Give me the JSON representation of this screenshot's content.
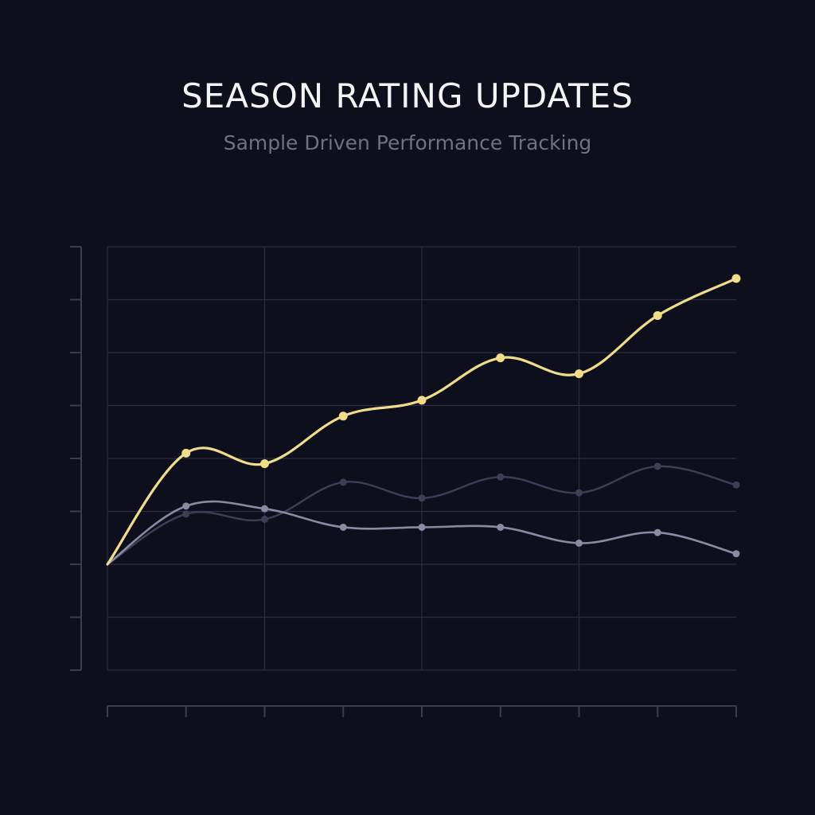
{
  "chart_data": {
    "type": "line",
    "title": "SEASON RATING UPDATES",
    "subtitle": "Sample Driven Performance Tracking",
    "xlabel": "",
    "ylabel": "",
    "x": [
      0,
      1,
      2,
      3,
      4,
      5,
      6,
      7,
      8
    ],
    "ylim": [
      0,
      8
    ],
    "grid": true,
    "legend": "none",
    "series": [
      {
        "color": "#f1dc8a",
        "values": [
          2.0,
          4.1,
          3.9,
          4.8,
          5.1,
          5.9,
          5.6,
          6.7,
          7.4
        ]
      },
      {
        "color": "#8a8ba3",
        "values": [
          2.0,
          3.1,
          3.05,
          2.7,
          2.7,
          2.7,
          2.4,
          2.6,
          2.2
        ]
      },
      {
        "color": "#3d3f57",
        "values": [
          2.0,
          2.95,
          2.85,
          3.55,
          3.25,
          3.65,
          3.35,
          3.85,
          3.5
        ]
      }
    ]
  }
}
